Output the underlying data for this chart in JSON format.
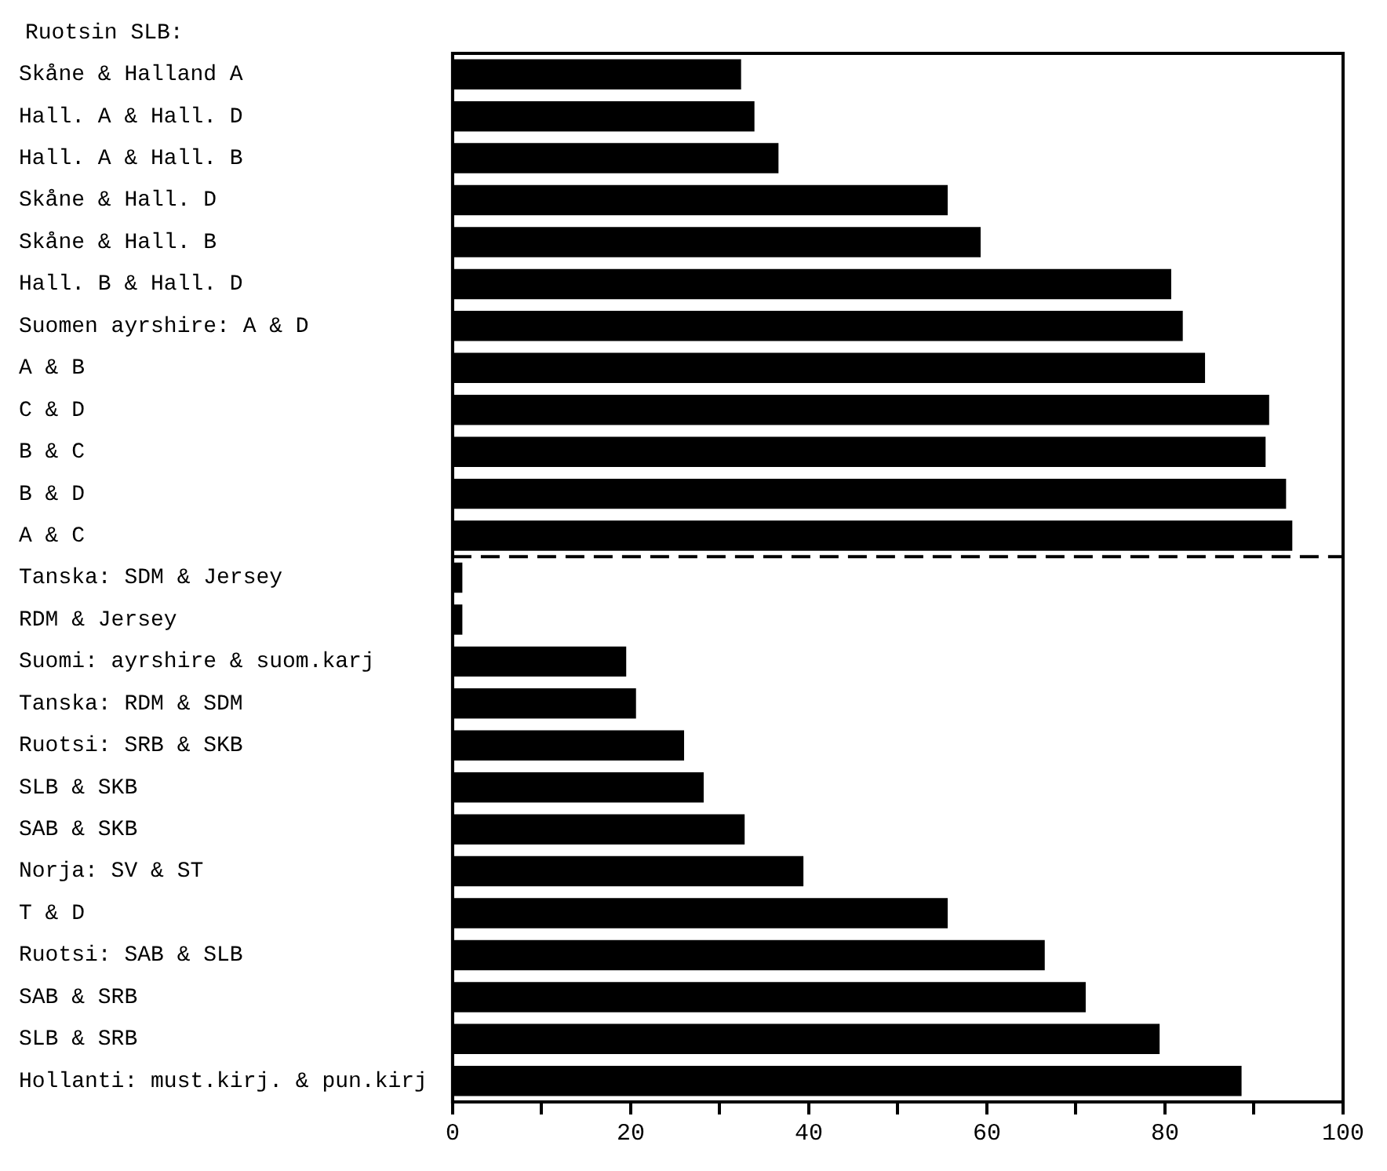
{
  "chart_data": {
    "type": "bar",
    "orientation": "horizontal",
    "categories": [
      "Skåne & Halland A",
      "Hall. A & Hall. D",
      "Hall. A & Hall. B",
      "Skåne & Hall. D",
      "Skåne & Hall. B",
      "Hall. B & Hall. D",
      "Suomen ayrshire: A & D",
      "A & B",
      "C & D",
      "B & C",
      "B & D",
      "A & C",
      "Tanska: SDM & Jersey",
      "RDM & Jersey",
      "Suomi: ayrshire & suom.karj",
      "Tanska: RDM & SDM",
      "Ruotsi: SRB & SKB",
      "SLB & SKB",
      "SAB & SKB",
      "Norja: SV & ST",
      "T & D",
      "Ruotsi: SAB & SLB",
      "SAB & SRB",
      "SLB & SRB",
      "Hollanti: must.kirj. & pun.kirj"
    ],
    "values": [
      32.4,
      33.9,
      36.6,
      55.6,
      59.3,
      80.7,
      82,
      84.5,
      91.7,
      91.3,
      93.6,
      94.3,
      1.1,
      1.1,
      19.5,
      20.6,
      26,
      28.2,
      32.8,
      39.4,
      55.6,
      66.5,
      71.1,
      79.4,
      88.6
    ],
    "color": "#000000",
    "xlim": [
      0,
      100
    ],
    "xticks": [
      0,
      {
        "value": 10,
        "label": null
      },
      20,
      {
        "value": 30,
        "label": null
      },
      40,
      {
        "value": 50,
        "label": null
      },
      60,
      {
        "value": 70,
        "label": null
      },
      80,
      {
        "value": 90,
        "label": null
      },
      100
    ],
    "grid": false,
    "annotations": [
      "Ruotsin SLB:"
    ]
  }
}
